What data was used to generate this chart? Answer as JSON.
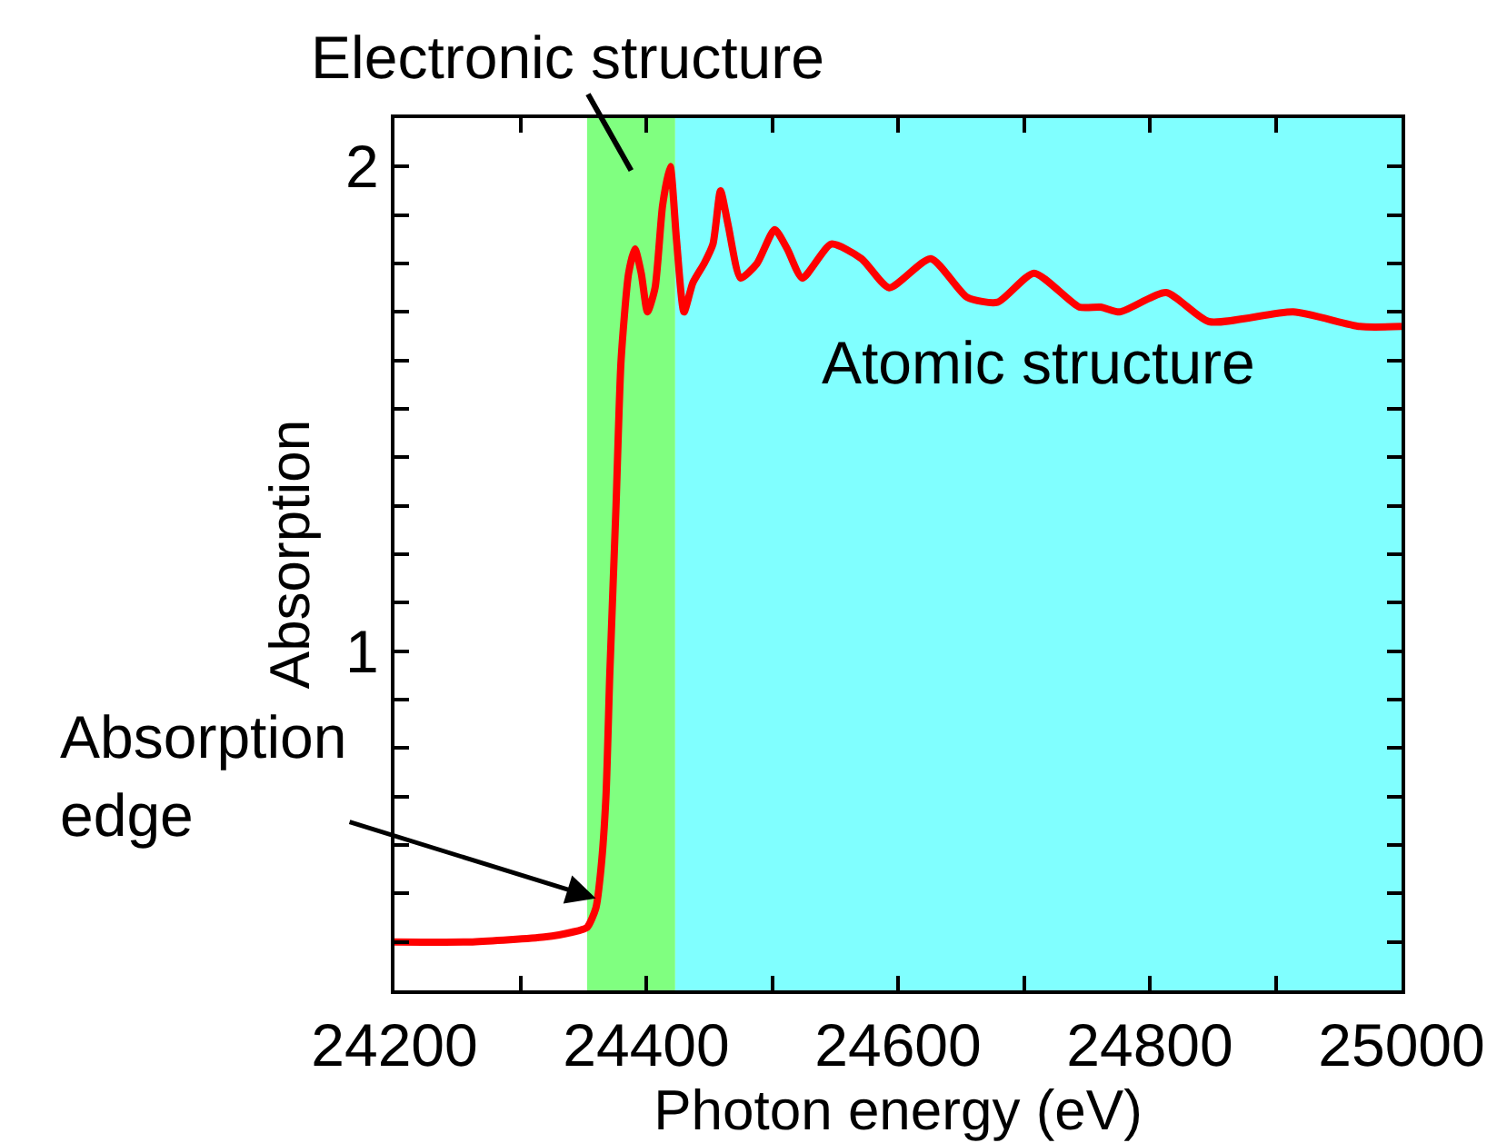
{
  "chart_data": {
    "type": "line",
    "xlabel": "Photon energy (eV)",
    "ylabel": "Absorption",
    "x": [
      24200,
      24262,
      24319,
      24341,
      24353,
      24360,
      24364,
      24368,
      24371,
      24376,
      24380,
      24386,
      24391,
      24396,
      24401,
      24407,
      24413,
      24419,
      24424,
      24430,
      24437,
      24446,
      24453,
      24459,
      24465,
      24475,
      24488,
      24502,
      24512,
      24524,
      24547,
      24571,
      24593,
      24626,
      24655,
      24679,
      24708,
      24744,
      24761,
      24776,
      24813,
      24847,
      24914,
      24967,
      25000
    ],
    "series": [
      {
        "color": "#ff0000",
        "values": [
          0.4,
          0.4,
          0.41,
          0.42,
          0.43,
          0.47,
          0.55,
          0.7,
          0.95,
          1.3,
          1.6,
          1.78,
          1.83,
          1.78,
          1.7,
          1.75,
          1.92,
          2.0,
          1.85,
          1.7,
          1.76,
          1.8,
          1.84,
          1.95,
          1.88,
          1.77,
          1.8,
          1.87,
          1.83,
          1.77,
          1.84,
          1.81,
          1.75,
          1.81,
          1.73,
          1.72,
          1.78,
          1.71,
          1.71,
          1.7,
          1.74,
          1.68,
          1.7,
          1.67,
          1.67
        ]
      }
    ],
    "xlim": [
      24200,
      25000
    ],
    "xticks": [
      24200,
      {
        "value": 24300,
        "label": null
      },
      24400,
      {
        "value": 24500,
        "label": null
      },
      24600,
      {
        "value": 24700,
        "label": null
      },
      24800,
      {
        "value": 24900,
        "label": null
      },
      25000
    ],
    "ylim": [
      0.3,
      2.1
    ],
    "yticks": [
      {
        "value": 0.4,
        "label": null
      },
      {
        "value": 0.5,
        "label": null
      },
      {
        "value": 0.6,
        "label": null
      },
      {
        "value": 0.7,
        "label": null
      },
      {
        "value": 0.8,
        "label": null
      },
      {
        "value": 0.9,
        "label": null
      },
      1,
      {
        "value": 1.1,
        "label": null
      },
      {
        "value": 1.2,
        "label": null
      },
      {
        "value": 1.3,
        "label": null
      },
      {
        "value": 1.4,
        "label": null
      },
      {
        "value": 1.5,
        "label": null
      },
      {
        "value": 1.6,
        "label": null
      },
      {
        "value": 1.7,
        "label": null
      },
      {
        "value": 1.8,
        "label": null
      },
      {
        "value": 1.9,
        "label": null
      },
      2
    ],
    "bands": [
      {
        "axis": "x",
        "from": 24353,
        "to": 24423,
        "label": "Electronic structure",
        "color": "#80ff80"
      },
      {
        "axis": "x",
        "from": 24423,
        "to": 25000,
        "label": "Atomic structure",
        "color": "#80ffff"
      }
    ],
    "annotations": [
      {
        "text": "Absorption\nedge",
        "x": 24360,
        "y": 0.49
      }
    ],
    "grid": false,
    "marker": "none",
    "line_style": "solid"
  }
}
